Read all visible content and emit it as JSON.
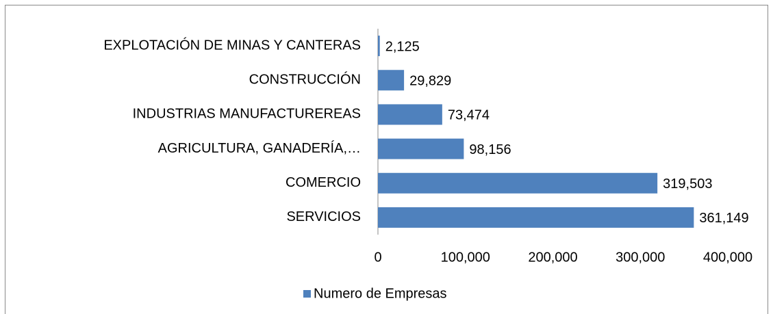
{
  "chart_data": {
    "type": "hbar",
    "categories": [
      "EXPLOTACIÓN DE MINAS Y CANTERAS",
      "CONSTRUCCIÓN",
      "INDUSTRIAS MANUFACTUREREAS",
      "AGRICULTURA, GANADERÍA,…",
      "COMERCIO",
      "SERVICIOS"
    ],
    "series": [
      {
        "name": "Numero de Empresas",
        "color": "#4f81bd",
        "values": [
          2125,
          29829,
          73474,
          98156,
          319503,
          361149
        ],
        "value_labels": [
          "2,125",
          "29,829",
          "73,474",
          "98,156",
          "319,503",
          "361,149"
        ]
      }
    ],
    "xlim": [
      0,
      400000
    ],
    "xticks": [
      0,
      {
        "value": 100000,
        "label": "100,000"
      },
      {
        "value": 200000,
        "label": "200,000"
      },
      {
        "value": 300000,
        "label": "300,000"
      },
      {
        "value": 400000,
        "label": "400,000"
      }
    ],
    "legend": "bottom"
  }
}
